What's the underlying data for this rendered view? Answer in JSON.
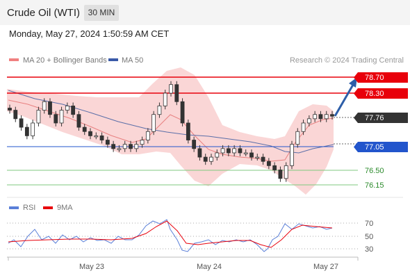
{
  "header": {
    "title": "Crude Oil (WTI)",
    "timeframe": "30 MIN"
  },
  "datetime": "Monday, May 27, 2024 1:50:59 AM CET",
  "legend": {
    "bb_label": "MA 20 + Bollinger Bands",
    "ma50_label": "MA 50",
    "credit": "Research © 2024 Trading Central"
  },
  "levels": {
    "r2": "78.70",
    "r1": "78.30",
    "current": "77.76",
    "s1": "77.05",
    "s2": "76.50",
    "s3": "76.15"
  },
  "rsi": {
    "label": "RSI",
    "ma_label": "9MA",
    "ticks": [
      "70",
      "50",
      "30"
    ]
  },
  "xaxis": {
    "labels": [
      "May 23",
      "May 24",
      "May 27"
    ]
  },
  "colors": {
    "resistance": "#e8000b",
    "support": "#2255cc",
    "current": "#333333",
    "band": "#f7c2c2",
    "ma50": "#4a5fa8",
    "arrow": "#2d5ea8",
    "minor_support": "#7fc97f"
  },
  "chart_data": {
    "type": "line",
    "y_levels": {
      "r2": 78.7,
      "r1": 78.3,
      "current": 77.76,
      "s1": 77.05,
      "s2": 76.5,
      "s3": 76.15
    },
    "x_labels": [
      "May 23",
      "May 24",
      "May 27"
    ],
    "price_close": [
      77.9,
      77.7,
      77.5,
      77.3,
      77.6,
      77.9,
      78.1,
      77.8,
      77.6,
      77.9,
      78.0,
      77.8,
      77.5,
      77.4,
      77.3,
      77.3,
      77.2,
      77.1,
      77.0,
      77.0,
      77.1,
      77.0,
      77.1,
      77.2,
      77.4,
      77.8,
      78.0,
      78.3,
      78.5,
      78.1,
      77.6,
      77.2,
      77.0,
      76.8,
      76.7,
      76.8,
      76.9,
      77.0,
      76.9,
      77.0,
      76.9,
      76.9,
      76.8,
      76.8,
      76.7,
      76.6,
      76.5,
      76.3,
      76.6,
      77.1,
      77.4,
      77.6,
      77.7,
      77.8,
      77.7,
      77.8,
      77.76
    ],
    "rsi_range": [
      30,
      70
    ]
  }
}
